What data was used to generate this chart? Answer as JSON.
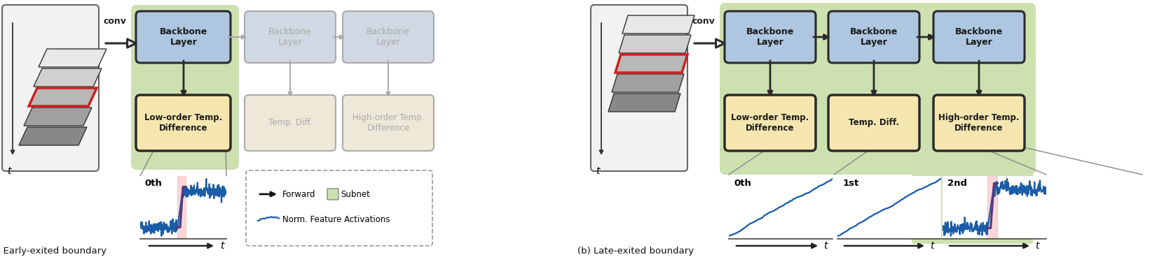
{
  "fig_width": 16.61,
  "fig_height": 3.68,
  "dpi": 100,
  "bg_color": "#ffffff",
  "subnet_green": "#cde0b0",
  "backbone_blue_active": "#aec6e0",
  "backbone_blue_inactive": "#d0d8e4",
  "temp_yellow_active": "#f5e6b0",
  "temp_yellow_inactive": "#ede8d8",
  "highlight_pink": "#f5b0b0",
  "line_blue": "#1a5ca8",
  "line_purple": "#5a3878",
  "text_dark": "#1a1a1a",
  "text_gray": "#aaaaaa",
  "edge_dark": "#2a2a2a",
  "edge_gray": "#aaaaaa",
  "frame_colors": [
    "#e8e8e8",
    "#d0d0d0",
    "#b8b8b8",
    "#a0a0a0",
    "#888888"
  ],
  "title_a": "(a) Early-exited boundary",
  "title_b": "(b) Late-exited boundary",
  "conv_text": "conv"
}
